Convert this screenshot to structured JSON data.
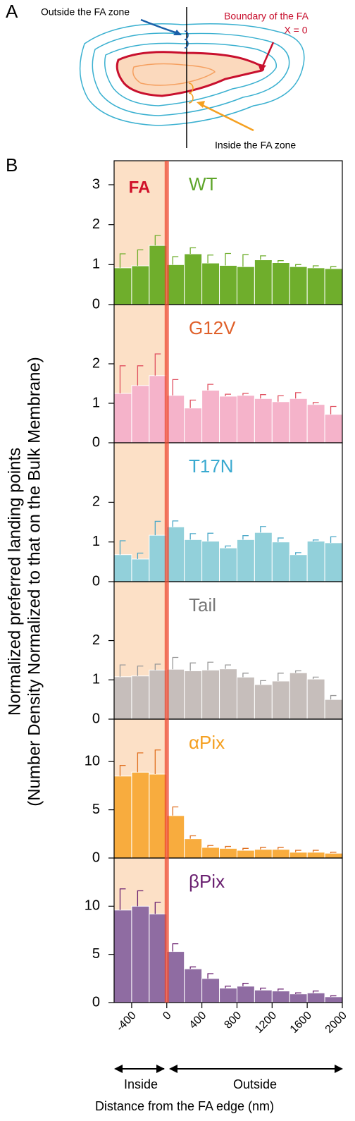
{
  "labels": {
    "panel_a": "A",
    "panel_b": "B",
    "outside_zone": "Outside the FA zone",
    "boundary": "Boundary of the FA",
    "x_zero": "X = 0",
    "inside_zone": "Inside the FA zone",
    "fa": "FA",
    "ylabel_1": "Normalized preferred landing points",
    "ylabel_2": "(Number Density Normalized to that on the Bulk Membrane)",
    "inside": "Inside",
    "outside": "Outside",
    "xlabel": "Distance from the FA edge (nm)"
  },
  "chart_data": [
    {
      "type": "histogram",
      "title": "WT",
      "title_color": "#5ea52a",
      "color": "#6fae2c",
      "error_color": "#6fae2c",
      "bins": [
        -600,
        -400,
        -200,
        0,
        200,
        400,
        600,
        800,
        1000,
        1200,
        1400,
        1600,
        1800,
        2000
      ],
      "values": [
        0.92,
        0.97,
        1.48,
        1.0,
        1.27,
        1.04,
        0.98,
        0.95,
        1.12,
        1.05,
        0.95,
        0.92,
        0.9
      ],
      "errors": [
        0.35,
        0.4,
        0.25,
        0.2,
        0.15,
        0.2,
        0.3,
        0.3,
        0.1,
        0.05,
        0.05,
        0.05,
        0.05
      ],
      "xlim": [
        -600,
        2000
      ],
      "ylim": [
        0,
        3.6
      ],
      "yticks": [
        0,
        1,
        2,
        3
      ]
    },
    {
      "type": "histogram",
      "title": "G12V",
      "title_color": "#e0602a",
      "color": "#f5b3ca",
      "error_color": "#e05060",
      "bins": [
        -600,
        -400,
        -200,
        0,
        200,
        400,
        600,
        800,
        1000,
        1200,
        1400,
        1600,
        1800,
        2000
      ],
      "values": [
        1.25,
        1.45,
        1.7,
        1.2,
        0.88,
        1.33,
        1.18,
        1.2,
        1.12,
        1.04,
        1.12,
        0.97,
        0.72
      ],
      "errors": [
        0.7,
        0.5,
        0.55,
        0.4,
        0.2,
        0.15,
        0.05,
        0.05,
        0.1,
        0.15,
        0.15,
        0.05,
        0.2
      ],
      "xlim": [
        -600,
        2000
      ],
      "ylim": [
        0,
        3.5
      ],
      "yticks": [
        0,
        1,
        2
      ]
    },
    {
      "type": "histogram",
      "title": "T17N",
      "title_color": "#3aaad0",
      "color": "#92d0da",
      "error_color": "#4aa8c8",
      "bins": [
        -600,
        -400,
        -200,
        0,
        200,
        400,
        600,
        800,
        1000,
        1200,
        1400,
        1600,
        1800,
        2000
      ],
      "values": [
        0.68,
        0.57,
        1.17,
        1.38,
        1.06,
        1.02,
        0.85,
        1.06,
        1.24,
        1.0,
        0.68,
        1.02,
        0.98
      ],
      "errors": [
        0.35,
        0.15,
        0.35,
        0.15,
        0.15,
        0.2,
        0.05,
        0.1,
        0.15,
        0.1,
        0.05,
        0.03,
        0.15
      ],
      "xlim": [
        -600,
        2000
      ],
      "ylim": [
        0,
        3.5
      ],
      "yticks": [
        0,
        1,
        2
      ]
    },
    {
      "type": "histogram",
      "title": "Tail",
      "title_color": "#777777",
      "color": "#c6bebb",
      "error_color": "#999999",
      "bins": [
        -600,
        -400,
        -200,
        0,
        200,
        400,
        600,
        800,
        1000,
        1200,
        1400,
        1600,
        1800,
        2000
      ],
      "values": [
        1.08,
        1.1,
        1.25,
        1.27,
        1.23,
        1.25,
        1.28,
        1.07,
        0.88,
        0.97,
        1.18,
        1.02,
        0.5
      ],
      "errors": [
        0.3,
        0.25,
        0.15,
        0.3,
        0.2,
        0.2,
        0.1,
        0.1,
        0.1,
        0.2,
        0.05,
        0.05,
        0.1
      ],
      "xlim": [
        -600,
        2000
      ],
      "ylim": [
        0,
        3.5
      ],
      "yticks": [
        0,
        1,
        2
      ]
    },
    {
      "type": "histogram",
      "title": "αPix",
      "title_color": "#f5a020",
      "color": "#f8ac3e",
      "error_color": "#e07020",
      "bins": [
        -600,
        -400,
        -200,
        0,
        200,
        400,
        600,
        800,
        1000,
        1200,
        1400,
        1600,
        1800,
        2000
      ],
      "values": [
        8.5,
        8.9,
        8.7,
        4.4,
        2.0,
        1.1,
        1.0,
        0.8,
        0.9,
        0.9,
        0.6,
        0.6,
        0.5
      ],
      "errors": [
        1.1,
        2.0,
        2.5,
        0.9,
        0.3,
        0.2,
        0.2,
        0.2,
        0.2,
        0.2,
        0.2,
        0.2,
        0.1
      ],
      "xlim": [
        -600,
        2000
      ],
      "ylim": [
        0,
        14.4
      ],
      "yticks": [
        0,
        5,
        10
      ]
    },
    {
      "type": "histogram",
      "title": "βPix",
      "title_color": "#6a2070",
      "color": "#8f6ca2",
      "error_color": "#6a2070",
      "bins": [
        -600,
        -400,
        -200,
        0,
        200,
        400,
        600,
        800,
        1000,
        1200,
        1400,
        1600,
        1800,
        2000
      ],
      "values": [
        9.6,
        10.0,
        9.2,
        5.3,
        3.5,
        2.5,
        1.5,
        1.7,
        1.3,
        1.2,
        0.9,
        1.0,
        0.6
      ],
      "errors": [
        2.2,
        1.6,
        1.2,
        0.8,
        0.2,
        0.5,
        0.2,
        0.3,
        0.2,
        0.2,
        0.1,
        0.2,
        0.1
      ],
      "xlim": [
        -600,
        2000
      ],
      "ylim": [
        0,
        15
      ],
      "yticks": [
        0,
        5,
        10
      ],
      "xticks": [
        -400,
        0,
        400,
        800,
        1200,
        1600,
        2000
      ]
    }
  ]
}
